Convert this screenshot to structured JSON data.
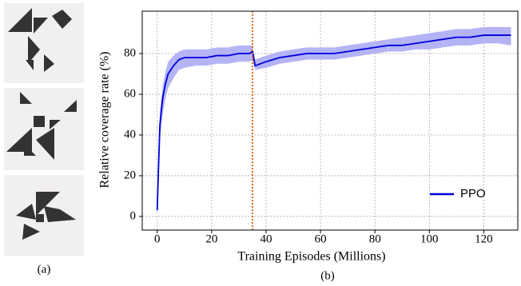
{
  "panel_labels": [
    "(a)",
    "(b)"
  ],
  "chart_data": {
    "type": "line",
    "x_label": "Training Episodes (Millions)",
    "y_label": "Relative coverage rate (%)",
    "x": [
      0,
      0.5,
      1,
      2,
      3,
      4,
      6,
      8,
      10,
      14,
      18,
      22,
      26,
      30,
      34,
      35,
      36,
      40,
      45,
      50,
      55,
      60,
      65,
      70,
      75,
      80,
      85,
      90,
      95,
      100,
      105,
      110,
      115,
      120,
      125,
      130
    ],
    "series": [
      {
        "name": "PPO",
        "color": "#0000dd",
        "band_color": "#b3b3f5",
        "values": [
          3,
          25,
          45,
          58,
          65,
          70,
          74,
          77,
          78,
          78,
          78,
          79,
          79,
          80,
          80,
          81,
          74,
          76,
          78,
          79,
          80,
          80,
          80,
          81,
          82,
          83,
          84,
          84,
          85,
          86,
          87,
          88,
          88,
          89,
          89,
          89
        ],
        "lower": [
          1,
          18,
          38,
          50,
          58,
          63,
          68,
          72,
          73,
          74,
          74,
          75,
          75,
          76,
          76,
          77,
          72,
          73,
          75,
          76,
          77,
          77,
          77,
          78,
          79,
          80,
          81,
          81,
          82,
          82,
          83,
          84,
          84,
          85,
          85,
          84
        ],
        "upper": [
          5,
          32,
          52,
          64,
          71,
          76,
          79,
          81,
          82,
          82,
          82,
          83,
          83,
          84,
          84,
          84,
          77,
          79,
          81,
          82,
          83,
          83,
          83,
          84,
          85,
          86,
          87,
          88,
          89,
          90,
          91,
          92,
          92,
          93,
          93,
          93
        ]
      }
    ],
    "vline_x": 35,
    "vline_color": "#e07020",
    "xlim": [
      -5.5,
      132.5
    ],
    "ylim": [
      -6.7,
      100.8
    ],
    "xticks": [
      0,
      20,
      40,
      60,
      80,
      100,
      120
    ],
    "yticks": [
      0,
      20,
      40,
      60,
      80
    ],
    "grid": true,
    "legend": "lower right"
  }
}
